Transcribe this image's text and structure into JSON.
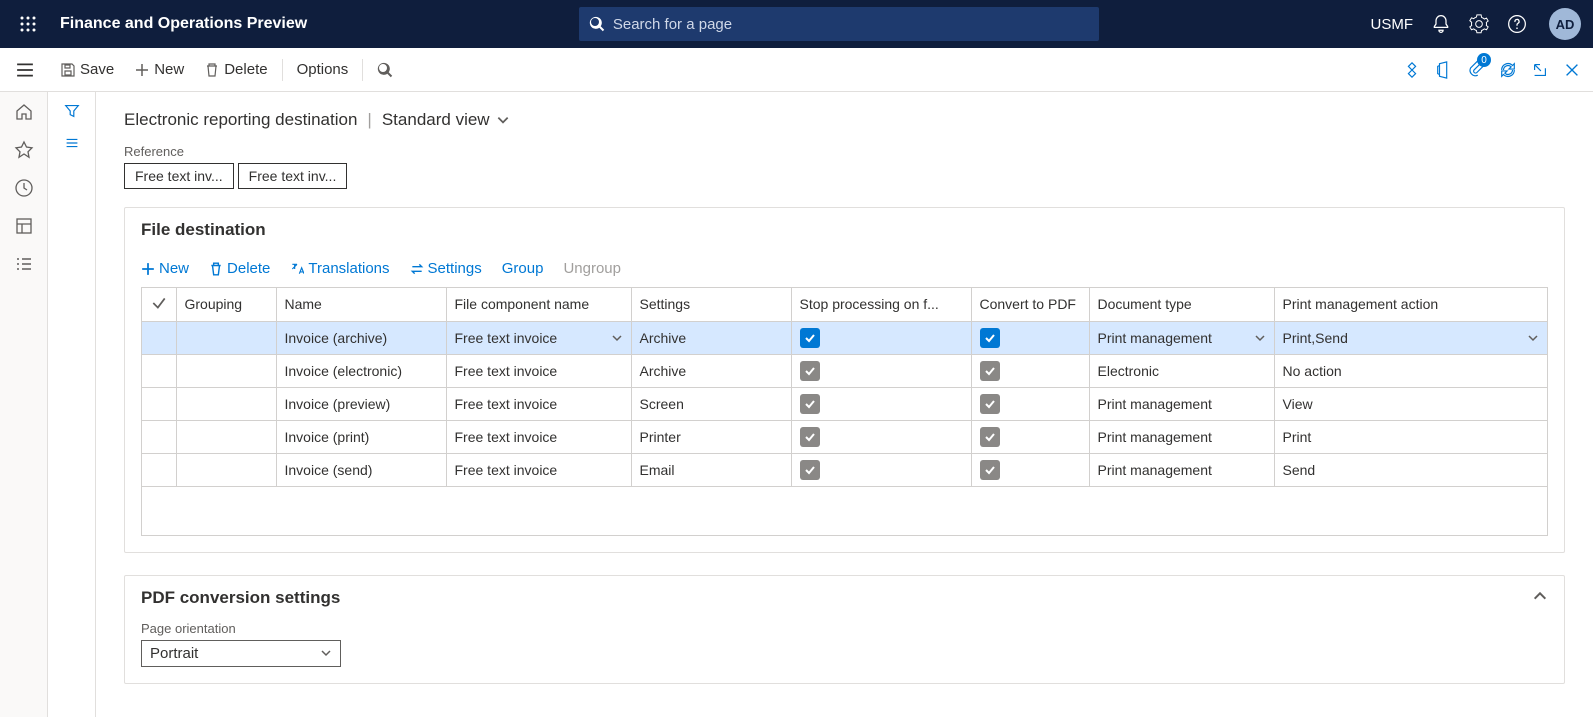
{
  "topnav": {
    "title": "Finance and Operations Preview",
    "search_placeholder": "Search for a page",
    "company": "USMF",
    "avatar": "AD"
  },
  "actionbar": {
    "save": "Save",
    "new": "New",
    "delete": "Delete",
    "options": "Options",
    "attach_count": "0"
  },
  "breadcrumb": {
    "page": "Electronic reporting destination",
    "view": "Standard view"
  },
  "reference": {
    "label": "Reference",
    "pills": [
      "Free text inv...",
      "Free text inv..."
    ]
  },
  "file_destination": {
    "title": "File destination",
    "toolbar": {
      "new": "New",
      "delete": "Delete",
      "translations": "Translations",
      "settings": "Settings",
      "group": "Group",
      "ungroup": "Ungroup"
    },
    "columns": {
      "grouping": "Grouping",
      "name": "Name",
      "file_component": "File component name",
      "settings": "Settings",
      "stop": "Stop processing on f...",
      "convert": "Convert to PDF",
      "doc_type": "Document type",
      "pma": "Print management action"
    },
    "rows": [
      {
        "selected": true,
        "name": "Invoice (archive)",
        "file_component": "Free text invoice",
        "settings": "Archive",
        "stop": true,
        "convert": true,
        "doc_type": "Print management",
        "pma": "Print,Send"
      },
      {
        "selected": false,
        "name": "Invoice (electronic)",
        "file_component": "Free text invoice",
        "settings": "Archive",
        "stop": true,
        "convert": true,
        "doc_type": "Electronic",
        "pma": "No action"
      },
      {
        "selected": false,
        "name": "Invoice (preview)",
        "file_component": "Free text invoice",
        "settings": "Screen",
        "stop": true,
        "convert": true,
        "doc_type": "Print management",
        "pma": "View"
      },
      {
        "selected": false,
        "name": "Invoice (print)",
        "file_component": "Free text invoice",
        "settings": "Printer",
        "stop": true,
        "convert": true,
        "doc_type": "Print management",
        "pma": "Print"
      },
      {
        "selected": false,
        "name": "Invoice (send)",
        "file_component": "Free text invoice",
        "settings": "Email",
        "stop": true,
        "convert": true,
        "doc_type": "Print management",
        "pma": "Send"
      }
    ]
  },
  "pdf": {
    "title": "PDF conversion settings",
    "orientation_label": "Page orientation",
    "orientation_value": "Portrait"
  }
}
